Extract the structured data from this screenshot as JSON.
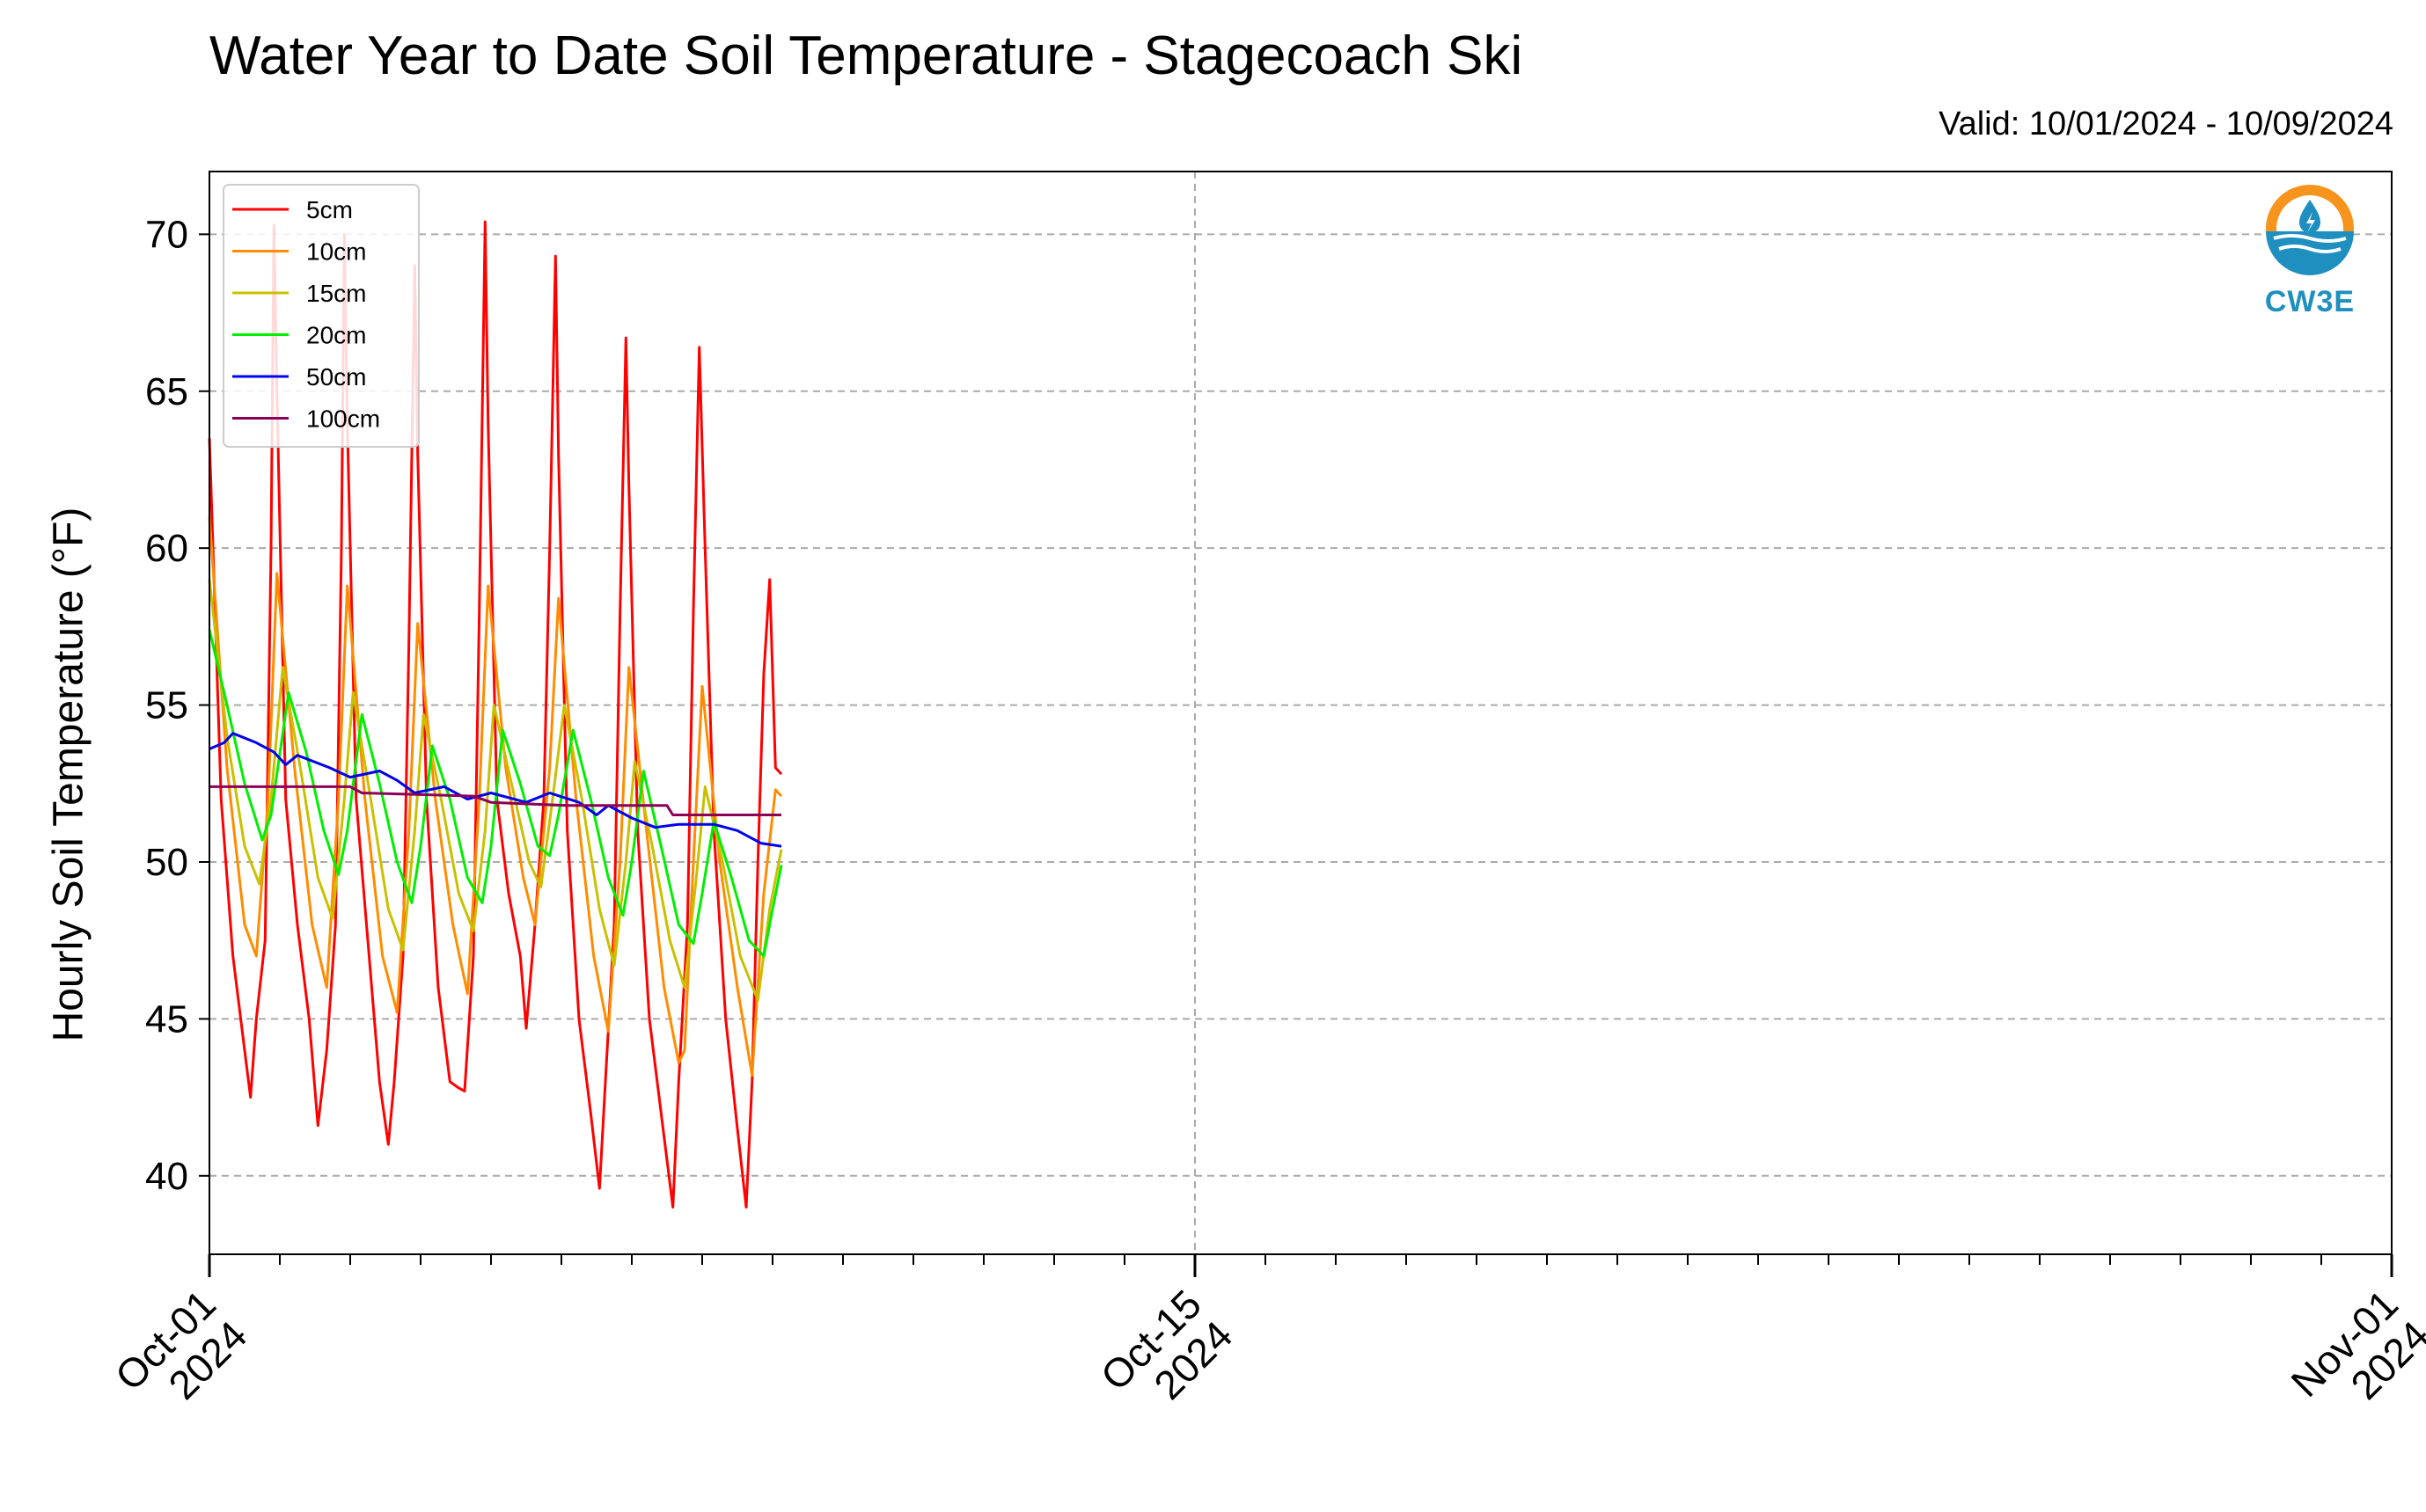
{
  "header": {
    "title": "Water Year to Date Soil Temperature - Stagecoach Ski",
    "valid": "Valid: 10/01/2024 - 10/09/2024"
  },
  "logo": {
    "text": "CW3E",
    "icon": "water-drop-logo-icon"
  },
  "colors": {
    "5cm": "#ff0000",
    "10cm": "#ff8c00",
    "15cm": "#c8c000",
    "20cm": "#00ee00",
    "50cm": "#0000ee",
    "100cm": "#8b0057"
  },
  "chart_data": {
    "type": "line",
    "title": "Water Year to Date Soil Temperature - Stagecoach Ski",
    "xlabel": "",
    "ylabel": "Hourly Soil Temperature (°F)",
    "xlim": [
      "2024-10-01",
      "2024-11-01"
    ],
    "ylim": [
      37.5,
      72
    ],
    "yticks": [
      40,
      45,
      50,
      55,
      60,
      65,
      70
    ],
    "xticks_major": [
      {
        "date": "2024-10-01",
        "label": [
          "Oct-01",
          "2024"
        ]
      },
      {
        "date": "2024-10-15",
        "label": [
          "Oct-15",
          "2024"
        ]
      },
      {
        "date": "2024-11-01",
        "label": [
          "Nov-01",
          "2024"
        ]
      }
    ],
    "grid": true,
    "legend_position": "top-left",
    "series": [
      {
        "name": "5cm",
        "color": "#ff0000",
        "points": [
          [
            "2024-10-01 00:00",
            63.5
          ],
          [
            "2024-10-01 04:00",
            52
          ],
          [
            "2024-10-01 08:00",
            47
          ],
          [
            "2024-10-01 12:00",
            44
          ],
          [
            "2024-10-01 14:00",
            42.5
          ],
          [
            "2024-10-01 16:00",
            45
          ],
          [
            "2024-10-01 19:00",
            47.5
          ],
          [
            "2024-10-01 21:00",
            60
          ],
          [
            "2024-10-01 22:00",
            70.3
          ],
          [
            "2024-10-01 23:00",
            65
          ],
          [
            "2024-10-02 02:00",
            52
          ],
          [
            "2024-10-02 06:00",
            48
          ],
          [
            "2024-10-02 10:00",
            45
          ],
          [
            "2024-10-02 13:00",
            41.6
          ],
          [
            "2024-10-02 16:00",
            44
          ],
          [
            "2024-10-02 19:00",
            48
          ],
          [
            "2024-10-02 21:00",
            60
          ],
          [
            "2024-10-02 22:00",
            70
          ],
          [
            "2024-10-02 23:00",
            64
          ],
          [
            "2024-10-03 02:00",
            52
          ],
          [
            "2024-10-03 06:00",
            47.5
          ],
          [
            "2024-10-03 10:00",
            43
          ],
          [
            "2024-10-03 13:00",
            41
          ],
          [
            "2024-10-03 15:00",
            43
          ],
          [
            "2024-10-03 18:00",
            47
          ],
          [
            "2024-10-03 20:00",
            57
          ],
          [
            "2024-10-03 22:00",
            69
          ],
          [
            "2024-10-03 23:00",
            63
          ],
          [
            "2024-10-04 02:00",
            52
          ],
          [
            "2024-10-04 06:00",
            46
          ],
          [
            "2024-10-04 10:00",
            43
          ],
          [
            "2024-10-04 13:00",
            42.8
          ],
          [
            "2024-10-04 15:00",
            42.7
          ],
          [
            "2024-10-04 18:00",
            47
          ],
          [
            "2024-10-04 20:00",
            58
          ],
          [
            "2024-10-04 22:00",
            70.4
          ],
          [
            "2024-10-04 23:00",
            64
          ],
          [
            "2024-10-05 02:00",
            52
          ],
          [
            "2024-10-05 06:00",
            49
          ],
          [
            "2024-10-05 10:00",
            47
          ],
          [
            "2024-10-05 12:00",
            44.7
          ],
          [
            "2024-10-05 15:00",
            48
          ],
          [
            "2024-10-05 18:00",
            52
          ],
          [
            "2024-10-05 20:00",
            60
          ],
          [
            "2024-10-05 22:00",
            69.3
          ],
          [
            "2024-10-05 23:00",
            63
          ],
          [
            "2024-10-06 02:00",
            51
          ],
          [
            "2024-10-06 06:00",
            45
          ],
          [
            "2024-10-06 10:00",
            42
          ],
          [
            "2024-10-06 13:00",
            39.6
          ],
          [
            "2024-10-06 15:00",
            43
          ],
          [
            "2024-10-06 18:00",
            48
          ],
          [
            "2024-10-06 20:00",
            58
          ],
          [
            "2024-10-06 22:00",
            66.7
          ],
          [
            "2024-10-06 23:00",
            62
          ],
          [
            "2024-10-07 02:00",
            51
          ],
          [
            "2024-10-07 06:00",
            45
          ],
          [
            "2024-10-07 10:00",
            42
          ],
          [
            "2024-10-07 14:00",
            39
          ],
          [
            "2024-10-07 16:00",
            43
          ],
          [
            "2024-10-07 19:00",
            48
          ],
          [
            "2024-10-07 21:00",
            58
          ],
          [
            "2024-10-07 23:00",
            66.4
          ],
          [
            "2024-10-08 01:00",
            60
          ],
          [
            "2024-10-08 04:00",
            51
          ],
          [
            "2024-10-08 08:00",
            45
          ],
          [
            "2024-10-08 12:00",
            41.5
          ],
          [
            "2024-10-08 15:00",
            39
          ],
          [
            "2024-10-08 17:00",
            43
          ],
          [
            "2024-10-08 19:00",
            50
          ],
          [
            "2024-10-08 21:00",
            56
          ],
          [
            "2024-10-08 23:00",
            59
          ],
          [
            "2024-10-09 01:00",
            53
          ],
          [
            "2024-10-09 03:00",
            52.8
          ]
        ]
      },
      {
        "name": "10cm",
        "color": "#ff8c00",
        "points": [
          [
            "2024-10-01 00:00",
            61
          ],
          [
            "2024-10-01 06:00",
            53
          ],
          [
            "2024-10-01 12:00",
            48
          ],
          [
            "2024-10-01 16:00",
            47
          ],
          [
            "2024-10-01 20:00",
            52
          ],
          [
            "2024-10-01 23:00",
            59.2
          ],
          [
            "2024-10-02 05:00",
            53
          ],
          [
            "2024-10-02 11:00",
            48
          ],
          [
            "2024-10-02 16:00",
            46
          ],
          [
            "2024-10-02 20:00",
            52
          ],
          [
            "2024-10-02 23:00",
            58.8
          ],
          [
            "2024-10-03 05:00",
            52
          ],
          [
            "2024-10-03 11:00",
            47
          ],
          [
            "2024-10-03 16:00",
            45.2
          ],
          [
            "2024-10-03 20:00",
            51
          ],
          [
            "2024-10-03 23:00",
            57.6
          ],
          [
            "2024-10-04 05:00",
            52
          ],
          [
            "2024-10-04 11:00",
            48
          ],
          [
            "2024-10-04 16:00",
            45.8
          ],
          [
            "2024-10-04 20:00",
            52
          ],
          [
            "2024-10-04 23:00",
            58.8
          ],
          [
            "2024-10-05 05:00",
            53
          ],
          [
            "2024-10-05 11:00",
            49.5
          ],
          [
            "2024-10-05 15:00",
            48
          ],
          [
            "2024-10-05 20:00",
            53
          ],
          [
            "2024-10-05 23:00",
            58.4
          ],
          [
            "2024-10-06 05:00",
            52
          ],
          [
            "2024-10-06 11:00",
            47
          ],
          [
            "2024-10-06 16:00",
            44.6
          ],
          [
            "2024-10-06 20:00",
            50
          ],
          [
            "2024-10-06 23:00",
            56.2
          ],
          [
            "2024-10-07 05:00",
            51
          ],
          [
            "2024-10-07 11:00",
            46
          ],
          [
            "2024-10-07 16:00",
            43.6
          ],
          [
            "2024-10-07 18:00",
            44
          ],
          [
            "2024-10-07 21:00",
            50
          ],
          [
            "2024-10-08 00:00",
            55.6
          ],
          [
            "2024-10-08 06:00",
            50
          ],
          [
            "2024-10-08 12:00",
            46
          ],
          [
            "2024-10-08 17:00",
            43.2
          ],
          [
            "2024-10-08 21:00",
            49
          ],
          [
            "2024-10-09 01:00",
            52.3
          ],
          [
            "2024-10-09 03:00",
            52.1
          ]
        ]
      },
      {
        "name": "15cm",
        "color": "#c8c000",
        "points": [
          [
            "2024-10-01 00:00",
            59
          ],
          [
            "2024-10-01 06:00",
            54
          ],
          [
            "2024-10-01 12:00",
            50.5
          ],
          [
            "2024-10-01 17:00",
            49.3
          ],
          [
            "2024-10-01 21:00",
            52
          ],
          [
            "2024-10-02 01:00",
            56.2
          ],
          [
            "2024-10-02 07:00",
            53
          ],
          [
            "2024-10-02 13:00",
            49.5
          ],
          [
            "2024-10-02 18:00",
            48.2
          ],
          [
            "2024-10-02 22:00",
            52
          ],
          [
            "2024-10-03 01:00",
            55.4
          ],
          [
            "2024-10-03 07:00",
            52
          ],
          [
            "2024-10-03 13:00",
            48.5
          ],
          [
            "2024-10-03 18:00",
            47.2
          ],
          [
            "2024-10-03 22:00",
            51
          ],
          [
            "2024-10-04 01:00",
            54.7
          ],
          [
            "2024-10-04 07:00",
            52
          ],
          [
            "2024-10-04 13:00",
            49
          ],
          [
            "2024-10-04 18:00",
            47.8
          ],
          [
            "2024-10-04 22:00",
            51
          ],
          [
            "2024-10-05 01:00",
            55
          ],
          [
            "2024-10-05 07:00",
            52.5
          ],
          [
            "2024-10-05 13:00",
            50
          ],
          [
            "2024-10-05 17:00",
            49.2
          ],
          [
            "2024-10-05 21:00",
            52
          ],
          [
            "2024-10-06 01:00",
            55
          ],
          [
            "2024-10-06 07:00",
            52
          ],
          [
            "2024-10-06 13:00",
            48.5
          ],
          [
            "2024-10-06 18:00",
            46.7
          ],
          [
            "2024-10-06 22:00",
            50
          ],
          [
            "2024-10-07 01:00",
            53.2
          ],
          [
            "2024-10-07 07:00",
            50.5
          ],
          [
            "2024-10-07 13:00",
            47.5
          ],
          [
            "2024-10-07 18:00",
            46
          ],
          [
            "2024-10-07 22:00",
            49.5
          ],
          [
            "2024-10-08 01:00",
            52.4
          ],
          [
            "2024-10-08 07:00",
            50
          ],
          [
            "2024-10-08 13:00",
            47
          ],
          [
            "2024-10-08 19:00",
            45.6
          ],
          [
            "2024-10-08 23:00",
            48.5
          ],
          [
            "2024-10-09 03:00",
            50.4
          ]
        ]
      },
      {
        "name": "20cm",
        "color": "#00ee00",
        "points": [
          [
            "2024-10-01 00:00",
            57.4
          ],
          [
            "2024-10-01 06:00",
            55
          ],
          [
            "2024-10-01 12:00",
            52.5
          ],
          [
            "2024-10-01 18:00",
            50.7
          ],
          [
            "2024-10-01 21:00",
            51.5
          ],
          [
            "2024-10-02 03:00",
            55.4
          ],
          [
            "2024-10-02 09:00",
            53.5
          ],
          [
            "2024-10-02 15:00",
            51
          ],
          [
            "2024-10-02 20:00",
            49.6
          ],
          [
            "2024-10-02 23:00",
            51
          ],
          [
            "2024-10-03 04:00",
            54.7
          ],
          [
            "2024-10-03 10:00",
            52.5
          ],
          [
            "2024-10-03 16:00",
            50
          ],
          [
            "2024-10-03 21:00",
            48.7
          ],
          [
            "2024-10-04 00:00",
            50.5
          ],
          [
            "2024-10-04 04:00",
            53.7
          ],
          [
            "2024-10-04 10:00",
            52
          ],
          [
            "2024-10-04 16:00",
            49.5
          ],
          [
            "2024-10-04 21:00",
            48.7
          ],
          [
            "2024-10-05 00:00",
            50.5
          ],
          [
            "2024-10-05 04:00",
            54.2
          ],
          [
            "2024-10-05 10:00",
            52.5
          ],
          [
            "2024-10-05 16:00",
            50.5
          ],
          [
            "2024-10-05 20:00",
            50.2
          ],
          [
            "2024-10-05 23:00",
            51.5
          ],
          [
            "2024-10-06 04:00",
            54.2
          ],
          [
            "2024-10-06 10:00",
            52
          ],
          [
            "2024-10-06 16:00",
            49.5
          ],
          [
            "2024-10-06 21:00",
            48.3
          ],
          [
            "2024-10-07 00:00",
            50
          ],
          [
            "2024-10-07 04:00",
            52.9
          ],
          [
            "2024-10-07 10:00",
            50.5
          ],
          [
            "2024-10-07 16:00",
            48
          ],
          [
            "2024-10-07 21:00",
            47.4
          ],
          [
            "2024-10-08 00:00",
            49
          ],
          [
            "2024-10-08 04:00",
            51.3
          ],
          [
            "2024-10-08 10:00",
            49.5
          ],
          [
            "2024-10-08 16:00",
            47.5
          ],
          [
            "2024-10-08 21:00",
            47
          ],
          [
            "2024-10-09 00:00",
            48.5
          ],
          [
            "2024-10-09 03:00",
            49.9
          ]
        ]
      },
      {
        "name": "50cm",
        "color": "#0000ee",
        "points": [
          [
            "2024-10-01 00:00",
            53.6
          ],
          [
            "2024-10-01 05:00",
            53.8
          ],
          [
            "2024-10-01 08:00",
            54.1
          ],
          [
            "2024-10-01 16:00",
            53.8
          ],
          [
            "2024-10-01 22:00",
            53.5
          ],
          [
            "2024-10-02 02:00",
            53.1
          ],
          [
            "2024-10-02 06:00",
            53.4
          ],
          [
            "2024-10-02 17:00",
            53
          ],
          [
            "2024-10-03 00:00",
            52.7
          ],
          [
            "2024-10-03 10:00",
            52.9
          ],
          [
            "2024-10-03 16:00",
            52.6
          ],
          [
            "2024-10-03 22:00",
            52.2
          ],
          [
            "2024-10-04 08:00",
            52.4
          ],
          [
            "2024-10-04 16:00",
            52
          ],
          [
            "2024-10-05 00:00",
            52.2
          ],
          [
            "2024-10-05 12:00",
            51.9
          ],
          [
            "2024-10-05 20:00",
            52.2
          ],
          [
            "2024-10-06 06:00",
            51.9
          ],
          [
            "2024-10-06 12:00",
            51.5
          ],
          [
            "2024-10-06 16:00",
            51.8
          ],
          [
            "2024-10-07 00:00",
            51.4
          ],
          [
            "2024-10-07 08:00",
            51.1
          ],
          [
            "2024-10-07 16:00",
            51.2
          ],
          [
            "2024-10-08 04:00",
            51.2
          ],
          [
            "2024-10-08 12:00",
            51
          ],
          [
            "2024-10-08 20:00",
            50.6
          ],
          [
            "2024-10-09 03:00",
            50.5
          ]
        ]
      },
      {
        "name": "100cm",
        "color": "#8b0057",
        "points": [
          [
            "2024-10-01 00:00",
            52.4
          ],
          [
            "2024-10-03 00:00",
            52.4
          ],
          [
            "2024-10-03 04:00",
            52.2
          ],
          [
            "2024-10-04 18:00",
            52.1
          ],
          [
            "2024-10-05 00:00",
            51.9
          ],
          [
            "2024-10-06 02:00",
            51.8
          ],
          [
            "2024-10-07 12:00",
            51.8
          ],
          [
            "2024-10-07 14:00",
            51.5
          ],
          [
            "2024-10-09 03:00",
            51.5
          ]
        ]
      }
    ]
  }
}
